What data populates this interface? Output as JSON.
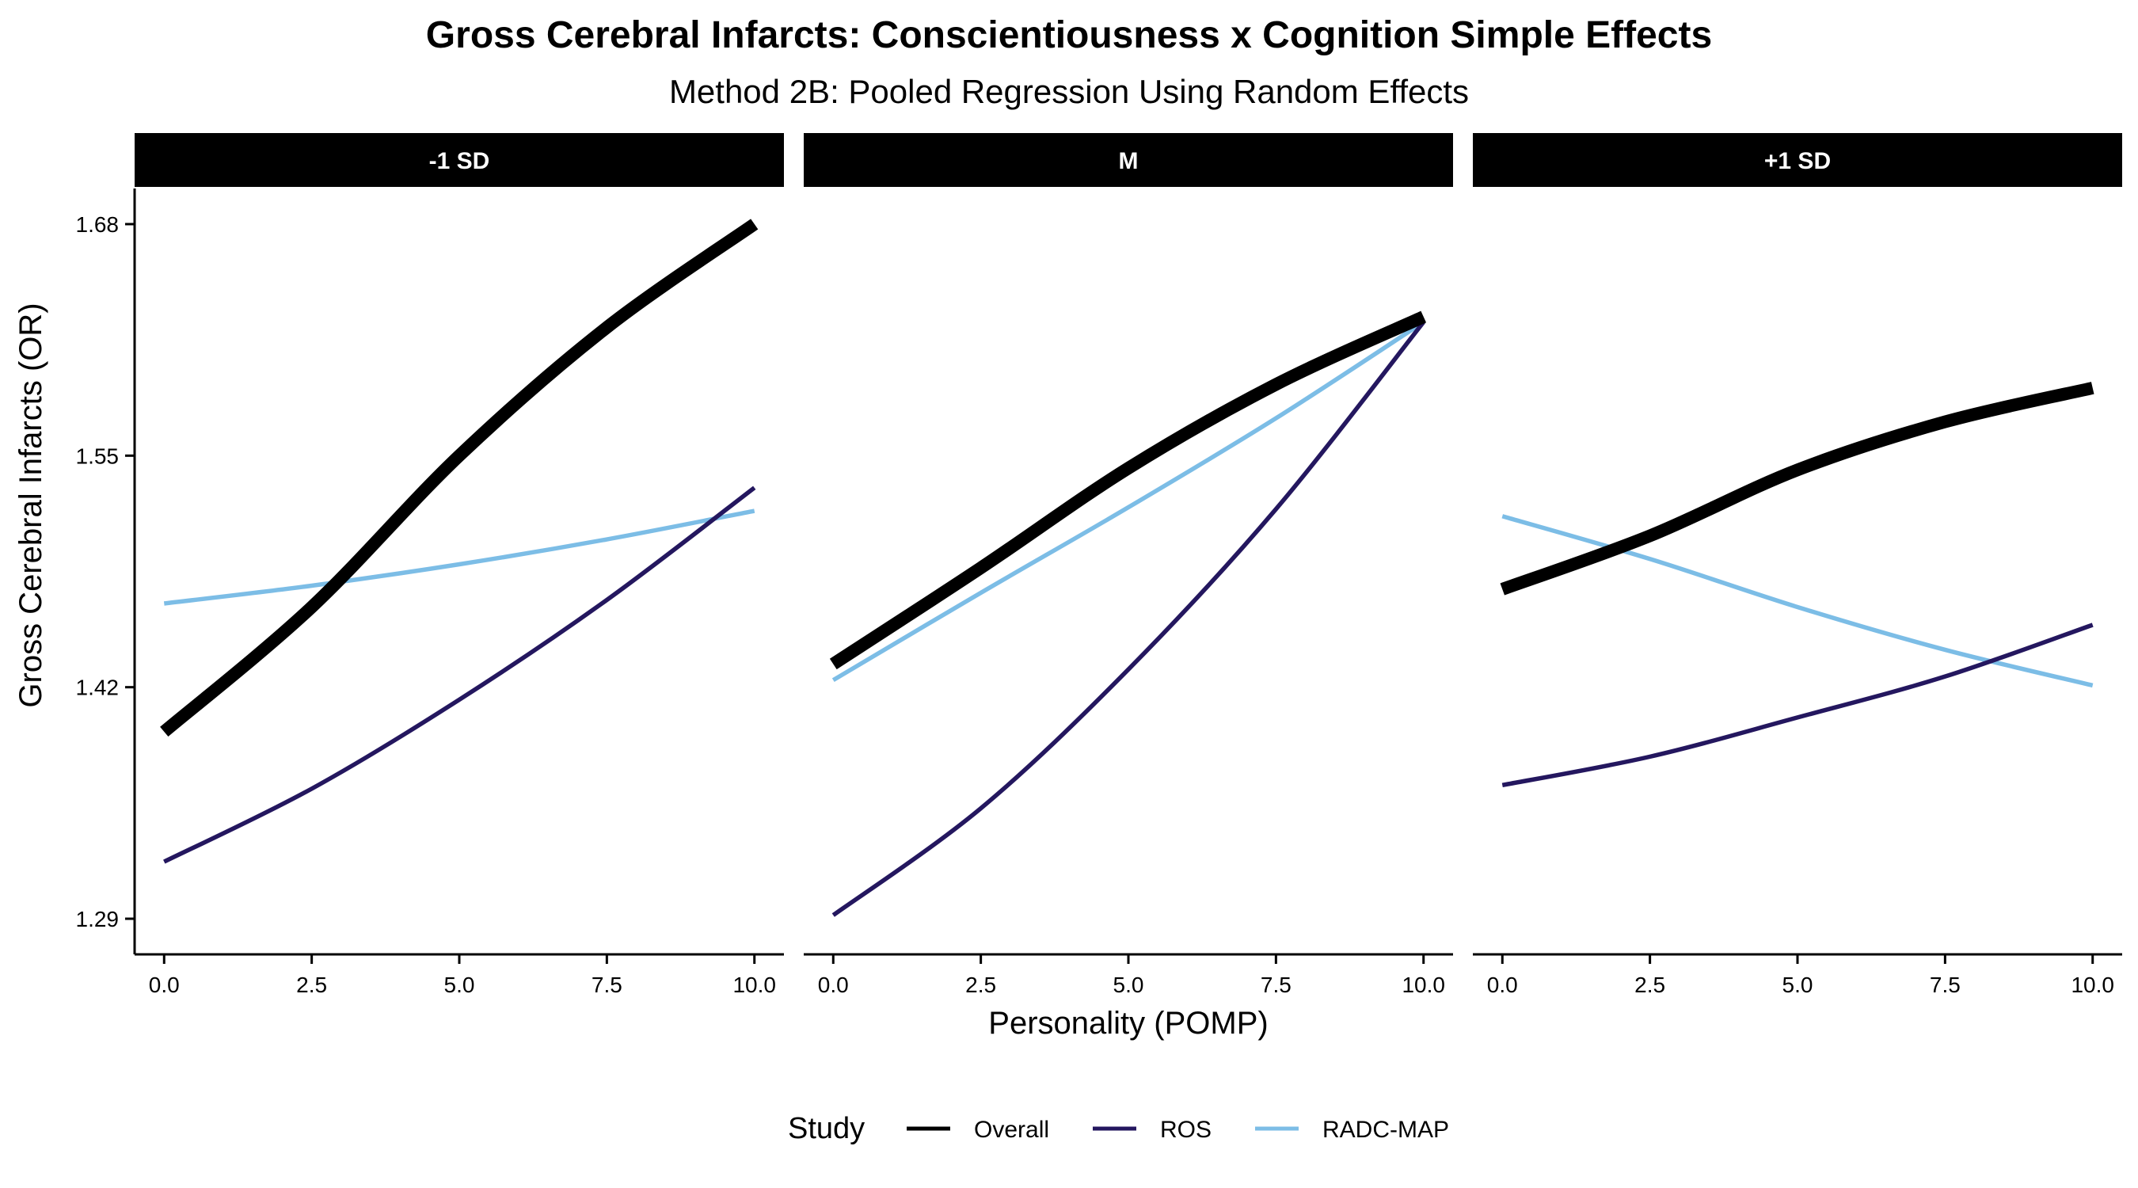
{
  "chart_data": {
    "type": "line",
    "title": "Gross Cerebral Infarcts: Conscientiousness x Cognition Simple Effects",
    "subtitle": "Method 2B: Pooled Regression Using Random Effects",
    "xlabel": "Personality (POMP)",
    "ylabel": "Gross Cerebral Infarcts (OR)",
    "xlim": [
      -0.5,
      10.5
    ],
    "ylim": [
      1.27,
      1.7
    ],
    "x_ticks": [
      0.0,
      2.5,
      5.0,
      7.5,
      10.0
    ],
    "x_tick_labels": [
      "0.0",
      "2.5",
      "5.0",
      "7.5",
      "10.0"
    ],
    "y_ticks": [
      1.29,
      1.42,
      1.55,
      1.68
    ],
    "y_tick_labels": [
      "1.29",
      "1.42",
      "1.55",
      "1.68"
    ],
    "grid": false,
    "legend": {
      "title": "Study",
      "position": "bottom",
      "entries": [
        {
          "name": "Overall",
          "color": "#000000",
          "weight": "thick"
        },
        {
          "name": "ROS",
          "color": "#24175f",
          "weight": "thin"
        },
        {
          "name": "RADC-MAP",
          "color": "#7cbde6",
          "weight": "thin"
        }
      ]
    },
    "panels": [
      {
        "label": "-1 SD",
        "series": [
          {
            "name": "Overall",
            "x": [
              0,
              2.5,
              5,
              7.5,
              10
            ],
            "y": [
              1.395,
              1.465,
              1.55,
              1.622,
              1.68
            ]
          },
          {
            "name": "ROS",
            "x": [
              0,
              2.5,
              5,
              7.5,
              10
            ],
            "y": [
              1.322,
              1.363,
              1.413,
              1.469,
              1.532
            ]
          },
          {
            "name": "RADC-MAP",
            "x": [
              0,
              2.5,
              5,
              7.5,
              10
            ],
            "y": [
              1.467,
              1.477,
              1.489,
              1.503,
              1.519
            ]
          }
        ]
      },
      {
        "label": "M",
        "series": [
          {
            "name": "Overall",
            "x": [
              0,
              2.5,
              5,
              7.5,
              10
            ],
            "y": [
              1.433,
              1.487,
              1.543,
              1.59,
              1.628
            ]
          },
          {
            "name": "ROS",
            "x": [
              0,
              2.5,
              5,
              7.5,
              10
            ],
            "y": [
              1.292,
              1.352,
              1.43,
              1.52,
              1.625
            ]
          },
          {
            "name": "RADC-MAP",
            "x": [
              0,
              2.5,
              5,
              7.5,
              10
            ],
            "y": [
              1.424,
              1.473,
              1.521,
              1.571,
              1.625
            ]
          }
        ]
      },
      {
        "label": "+1 SD",
        "series": [
          {
            "name": "Overall",
            "x": [
              0,
              2.5,
              5,
              7.5,
              10
            ],
            "y": [
              1.475,
              1.505,
              1.542,
              1.569,
              1.588
            ]
          },
          {
            "name": "ROS",
            "x": [
              0,
              2.5,
              5,
              7.5,
              10
            ],
            "y": [
              1.365,
              1.381,
              1.403,
              1.426,
              1.455
            ]
          },
          {
            "name": "RADC-MAP",
            "x": [
              0,
              2.5,
              5,
              7.5,
              10
            ],
            "y": [
              1.516,
              1.492,
              1.465,
              1.441,
              1.421
            ]
          }
        ]
      }
    ]
  }
}
